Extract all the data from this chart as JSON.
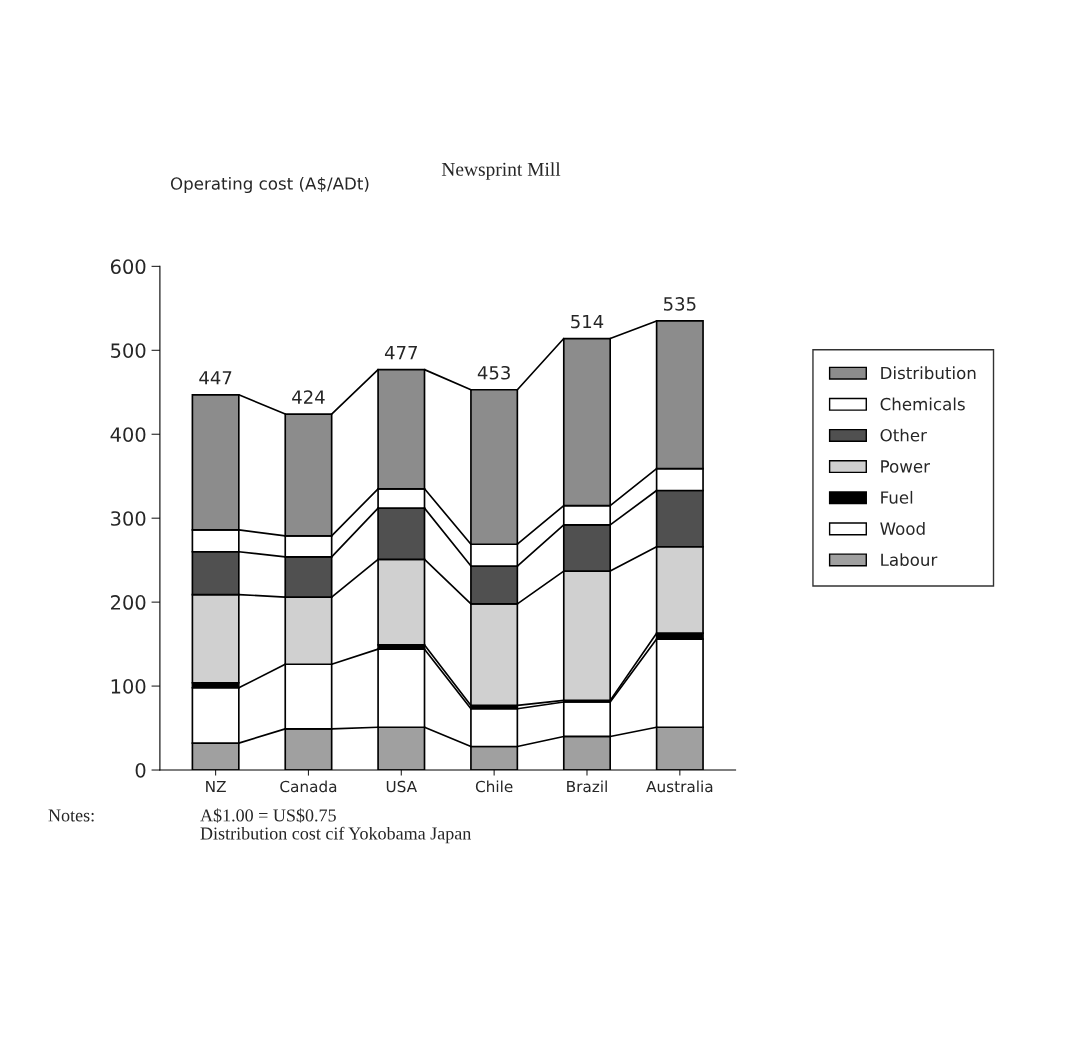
{
  "chart_data": {
    "type": "bar",
    "title": "Newsprint Mill",
    "ylabel": "Operating cost (A$/ADt)",
    "categories": [
      "NZ",
      "Canada",
      "USA",
      "Chile",
      "Brazil",
      "Australia"
    ],
    "stacked": true,
    "series": [
      {
        "name": "Labour",
        "color": "#a0a0a0",
        "values": [
          32,
          49,
          51,
          28,
          40,
          51
        ]
      },
      {
        "name": "Wood",
        "color": "#ffffff",
        "values": [
          66,
          77,
          93,
          45,
          41,
          105
        ]
      },
      {
        "name": "Fuel",
        "color": "#000000",
        "values": [
          6,
          null,
          5,
          4,
          2,
          7
        ]
      },
      {
        "name": "Power",
        "color": "#d0d0d0",
        "values": [
          105,
          80,
          102,
          121,
          154,
          103
        ]
      },
      {
        "name": "Other",
        "color": "#505050",
        "values": [
          51,
          48,
          61,
          45,
          55,
          67
        ]
      },
      {
        "name": "Chemicals",
        "color": "#ffffff",
        "values": [
          26,
          25,
          23,
          26,
          23,
          26
        ]
      },
      {
        "name": "Distribution",
        "color": "#8c8c8c",
        "values": [
          161,
          145,
          142,
          184,
          199,
          176
        ]
      }
    ],
    "totals": [
      "447",
      "424",
      "477",
      "453",
      "514",
      "535"
    ],
    "ylim": [
      0,
      600
    ],
    "yticks": [
      0,
      100,
      200,
      300,
      400,
      500,
      600
    ],
    "grid": false,
    "legend": "right",
    "annotations": [
      "Notes:",
      "A$1.00 = US$0.75",
      "Distribution cost cif Yokobama Japan"
    ]
  }
}
